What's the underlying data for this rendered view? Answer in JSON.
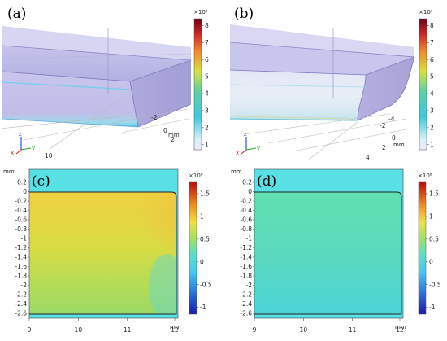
{
  "panels": {
    "a": {
      "label": "(a)",
      "colorbar": {
        "multiplier": "×10⁶",
        "ticks": [
          "8",
          "7",
          "6",
          "5",
          "4",
          "3",
          "2",
          "1"
        ],
        "range": [
          0.7,
          8.4
        ]
      },
      "axis_ticks": [
        "-2",
        "0",
        "2",
        "10"
      ],
      "axis_unit": "mm",
      "triad": [
        "z",
        "y",
        "x"
      ]
    },
    "b": {
      "label": "(b)",
      "colorbar": {
        "multiplier": "×10⁶",
        "ticks": [
          "8",
          "7",
          "6",
          "5",
          "4",
          "3",
          "2",
          "1"
        ],
        "range": [
          0.7,
          8.4
        ]
      },
      "axis_ticks": [
        "-4",
        "-2",
        "0",
        "2",
        "4"
      ],
      "axis_unit": "mm",
      "triad": [
        "z",
        "y",
        "x"
      ]
    },
    "c": {
      "label": "(c)",
      "y_unit": "mm",
      "x_unit": "mm",
      "y_ticks": [
        "0.2",
        "0",
        "-0.2",
        "-0.4",
        "-0.6",
        "-0.8",
        "-1",
        "-1.2",
        "-1.4",
        "-1.6",
        "-1.8",
        "-2",
        "-2.2",
        "-2.4",
        "-2.6"
      ],
      "x_ticks": [
        "9",
        "10",
        "11",
        "12"
      ],
      "colorbar": {
        "multiplier": "×10⁶",
        "ticks": [
          "1.5",
          "1",
          "0.5",
          "0",
          "-0.5",
          "-1"
        ],
        "range": [
          -1.15,
          1.75
        ]
      }
    },
    "d": {
      "label": "(d)",
      "y_unit": "mm",
      "x_unit": "mm",
      "y_ticks": [
        "0.2",
        "0",
        "-0.2",
        "-0.4",
        "-0.6",
        "-0.8",
        "-1",
        "-1.2",
        "-1.4",
        "-1.6",
        "-1.8",
        "-2",
        "-2.2",
        "-2.4",
        "-2.6"
      ],
      "x_ticks": [
        "9",
        "10",
        "11",
        "12"
      ],
      "colorbar": {
        "multiplier": "×10⁶",
        "ticks": [
          "1.5",
          "1",
          "0.5",
          "0",
          "-0.5",
          "-1"
        ],
        "range": [
          -1.15,
          1.75
        ]
      }
    }
  }
}
